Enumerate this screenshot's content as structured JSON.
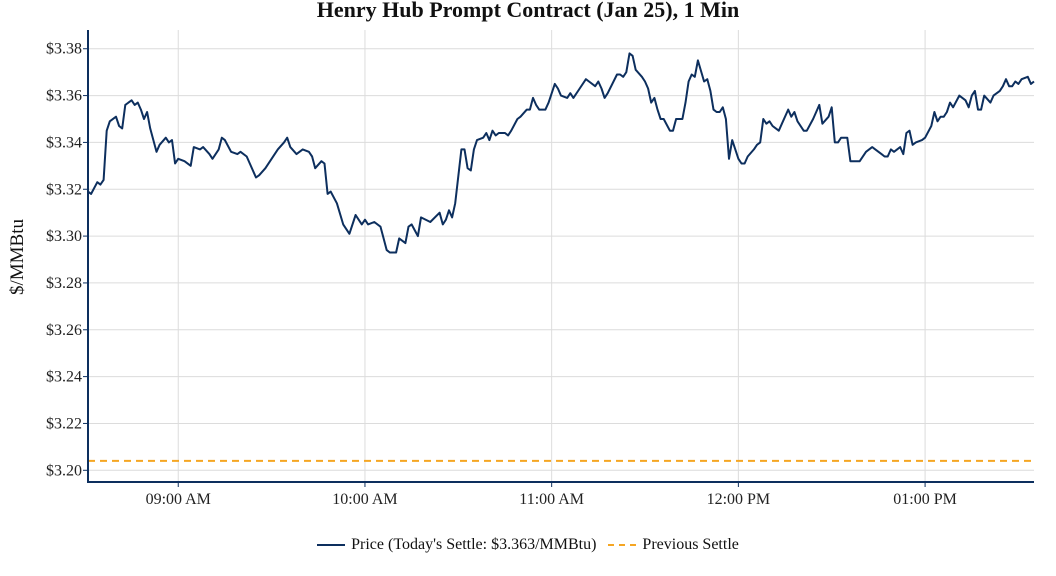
{
  "chart_data": {
    "type": "line",
    "title": "Henry Hub Prompt Contract (Jan 25), 1 Min",
    "xlabel": "",
    "ylabel": "$/MMBtu",
    "xlim": [
      "08:31",
      "13:35"
    ],
    "ylim": [
      3.195,
      3.388
    ],
    "grid": true,
    "legend_placement": "bottom-center",
    "x_ticks": [
      {
        "time": "09:00",
        "label": "09:00 AM"
      },
      {
        "time": "10:00",
        "label": "10:00 AM"
      },
      {
        "time": "11:00",
        "label": "11:00 AM"
      },
      {
        "time": "12:00",
        "label": "12:00 PM"
      },
      {
        "time": "13:00",
        "label": "01:00 PM"
      }
    ],
    "y_ticks": [
      {
        "value": 3.2,
        "label": "$3.20"
      },
      {
        "value": 3.22,
        "label": "$3.22"
      },
      {
        "value": 3.24,
        "label": "$3.24"
      },
      {
        "value": 3.26,
        "label": "$3.26"
      },
      {
        "value": 3.28,
        "label": "$3.28"
      },
      {
        "value": 3.3,
        "label": "$3.30"
      },
      {
        "value": 3.32,
        "label": "$3.32"
      },
      {
        "value": 3.34,
        "label": "$3.34"
      },
      {
        "value": 3.36,
        "label": "$3.36"
      },
      {
        "value": 3.38,
        "label": "$3.38"
      }
    ],
    "series": [
      {
        "name": "Price (Today's Settle: $3.363/MMBtu)",
        "color": "#0d2f5e",
        "style": "solid",
        "points": [
          [
            "08:31",
            3.319
          ],
          [
            "08:32",
            3.318
          ],
          [
            "08:34",
            3.323
          ],
          [
            "08:35",
            3.322
          ],
          [
            "08:36",
            3.324
          ],
          [
            "08:37",
            3.345
          ],
          [
            "08:38",
            3.349
          ],
          [
            "08:40",
            3.351
          ],
          [
            "08:41",
            3.347
          ],
          [
            "08:42",
            3.346
          ],
          [
            "08:43",
            3.356
          ],
          [
            "08:45",
            3.358
          ],
          [
            "08:46",
            3.356
          ],
          [
            "08:47",
            3.357
          ],
          [
            "08:48",
            3.354
          ],
          [
            "08:49",
            3.35
          ],
          [
            "08:50",
            3.353
          ],
          [
            "08:51",
            3.346
          ],
          [
            "08:53",
            3.336
          ],
          [
            "08:54",
            3.339
          ],
          [
            "08:56",
            3.342
          ],
          [
            "08:57",
            3.34
          ],
          [
            "08:58",
            3.341
          ],
          [
            "08:59",
            3.331
          ],
          [
            "09:00",
            3.333
          ],
          [
            "09:02",
            3.332
          ],
          [
            "09:04",
            3.33
          ],
          [
            "09:05",
            3.338
          ],
          [
            "09:07",
            3.337
          ],
          [
            "09:08",
            3.338
          ],
          [
            "09:10",
            3.335
          ],
          [
            "09:11",
            3.333
          ],
          [
            "09:13",
            3.337
          ],
          [
            "09:14",
            3.342
          ],
          [
            "09:15",
            3.341
          ],
          [
            "09:17",
            3.336
          ],
          [
            "09:19",
            3.335
          ],
          [
            "09:20",
            3.336
          ],
          [
            "09:22",
            3.334
          ],
          [
            "09:23",
            3.331
          ],
          [
            "09:25",
            3.325
          ],
          [
            "09:26",
            3.326
          ],
          [
            "09:28",
            3.329
          ],
          [
            "09:30",
            3.333
          ],
          [
            "09:32",
            3.337
          ],
          [
            "09:34",
            3.34
          ],
          [
            "09:35",
            3.342
          ],
          [
            "09:36",
            3.338
          ],
          [
            "09:38",
            3.335
          ],
          [
            "09:40",
            3.337
          ],
          [
            "09:42",
            3.336
          ],
          [
            "09:43",
            3.334
          ],
          [
            "09:44",
            3.329
          ],
          [
            "09:46",
            3.332
          ],
          [
            "09:47",
            3.331
          ],
          [
            "09:48",
            3.318
          ],
          [
            "09:49",
            3.319
          ],
          [
            "09:51",
            3.314
          ],
          [
            "09:53",
            3.305
          ],
          [
            "09:55",
            3.301
          ],
          [
            "09:57",
            3.309
          ],
          [
            "09:59",
            3.305
          ],
          [
            "10:00",
            3.307
          ],
          [
            "10:01",
            3.305
          ],
          [
            "10:03",
            3.306
          ],
          [
            "10:05",
            3.304
          ],
          [
            "10:06",
            3.299
          ],
          [
            "10:07",
            3.294
          ],
          [
            "10:08",
            3.293
          ],
          [
            "10:10",
            3.293
          ],
          [
            "10:11",
            3.299
          ],
          [
            "10:13",
            3.297
          ],
          [
            "10:14",
            3.304
          ],
          [
            "10:15",
            3.305
          ],
          [
            "10:17",
            3.3
          ],
          [
            "10:18",
            3.308
          ],
          [
            "10:21",
            3.306
          ],
          [
            "10:24",
            3.31
          ],
          [
            "10:25",
            3.305
          ],
          [
            "10:26",
            3.307
          ],
          [
            "10:27",
            3.311
          ],
          [
            "10:28",
            3.308
          ],
          [
            "10:29",
            3.314
          ],
          [
            "10:31",
            3.337
          ],
          [
            "10:32",
            3.337
          ],
          [
            "10:33",
            3.329
          ],
          [
            "10:34",
            3.328
          ],
          [
            "10:35",
            3.337
          ],
          [
            "10:36",
            3.341
          ],
          [
            "10:38",
            3.342
          ],
          [
            "10:39",
            3.344
          ],
          [
            "10:40",
            3.341
          ],
          [
            "10:41",
            3.345
          ],
          [
            "10:42",
            3.343
          ],
          [
            "10:43",
            3.344
          ],
          [
            "10:45",
            3.344
          ],
          [
            "10:46",
            3.343
          ],
          [
            "10:47",
            3.345
          ],
          [
            "10:49",
            3.35
          ],
          [
            "10:50",
            3.351
          ],
          [
            "10:52",
            3.354
          ],
          [
            "10:53",
            3.354
          ],
          [
            "10:54",
            3.359
          ],
          [
            "10:55",
            3.356
          ],
          [
            "10:56",
            3.354
          ],
          [
            "10:58",
            3.354
          ],
          [
            "10:59",
            3.357
          ],
          [
            "11:01",
            3.365
          ],
          [
            "11:02",
            3.363
          ],
          [
            "11:03",
            3.36
          ],
          [
            "11:05",
            3.359
          ],
          [
            "11:06",
            3.361
          ],
          [
            "11:07",
            3.359
          ],
          [
            "11:09",
            3.363
          ],
          [
            "11:11",
            3.367
          ],
          [
            "11:12",
            3.366
          ],
          [
            "11:14",
            3.364
          ],
          [
            "11:15",
            3.366
          ],
          [
            "11:16",
            3.363
          ],
          [
            "11:17",
            3.359
          ],
          [
            "11:18",
            3.361
          ],
          [
            "11:21",
            3.369
          ],
          [
            "11:22",
            3.369
          ],
          [
            "11:23",
            3.368
          ],
          [
            "11:24",
            3.37
          ],
          [
            "11:25",
            3.378
          ],
          [
            "11:26",
            3.377
          ],
          [
            "11:27",
            3.371
          ],
          [
            "11:29",
            3.368
          ],
          [
            "11:30",
            3.366
          ],
          [
            "11:31",
            3.363
          ],
          [
            "11:32",
            3.357
          ],
          [
            "11:33",
            3.359
          ],
          [
            "11:34",
            3.354
          ],
          [
            "11:35",
            3.35
          ],
          [
            "11:36",
            3.35
          ],
          [
            "11:38",
            3.345
          ],
          [
            "11:39",
            3.345
          ],
          [
            "11:40",
            3.35
          ],
          [
            "11:42",
            3.35
          ],
          [
            "11:43",
            3.357
          ],
          [
            "11:44",
            3.366
          ],
          [
            "11:45",
            3.369
          ],
          [
            "11:46",
            3.368
          ],
          [
            "11:47",
            3.375
          ],
          [
            "11:49",
            3.366
          ],
          [
            "11:50",
            3.367
          ],
          [
            "11:51",
            3.362
          ],
          [
            "11:52",
            3.354
          ],
          [
            "11:53",
            3.353
          ],
          [
            "11:54",
            3.353
          ],
          [
            "11:55",
            3.355
          ],
          [
            "11:56",
            3.35
          ],
          [
            "11:57",
            3.333
          ],
          [
            "11:58",
            3.341
          ],
          [
            "12:00",
            3.333
          ],
          [
            "12:01",
            3.331
          ],
          [
            "12:02",
            3.331
          ],
          [
            "12:03",
            3.334
          ],
          [
            "12:05",
            3.337
          ],
          [
            "12:06",
            3.339
          ],
          [
            "12:07",
            3.34
          ],
          [
            "12:08",
            3.35
          ],
          [
            "12:09",
            3.348
          ],
          [
            "12:10",
            3.349
          ],
          [
            "12:11",
            3.347
          ],
          [
            "12:13",
            3.345
          ],
          [
            "12:14",
            3.348
          ],
          [
            "12:16",
            3.354
          ],
          [
            "12:17",
            3.351
          ],
          [
            "12:18",
            3.353
          ],
          [
            "12:19",
            3.349
          ],
          [
            "12:21",
            3.345
          ],
          [
            "12:22",
            3.345
          ],
          [
            "12:24",
            3.35
          ],
          [
            "12:25",
            3.353
          ],
          [
            "12:26",
            3.356
          ],
          [
            "12:27",
            3.348
          ],
          [
            "12:29",
            3.351
          ],
          [
            "12:30",
            3.355
          ],
          [
            "12:31",
            3.34
          ],
          [
            "12:32",
            3.34
          ],
          [
            "12:33",
            3.342
          ],
          [
            "12:35",
            3.342
          ],
          [
            "12:36",
            3.332
          ],
          [
            "12:39",
            3.332
          ],
          [
            "12:41",
            3.336
          ],
          [
            "12:43",
            3.338
          ],
          [
            "12:44",
            3.337
          ],
          [
            "12:46",
            3.335
          ],
          [
            "12:47",
            3.334
          ],
          [
            "12:48",
            3.334
          ],
          [
            "12:49",
            3.337
          ],
          [
            "12:50",
            3.336
          ],
          [
            "12:51",
            3.337
          ],
          [
            "12:52",
            3.338
          ],
          [
            "12:53",
            3.335
          ],
          [
            "12:54",
            3.344
          ],
          [
            "12:55",
            3.345
          ],
          [
            "12:56",
            3.339
          ],
          [
            "12:57",
            3.34
          ],
          [
            "12:59",
            3.341
          ],
          [
            "13:00",
            3.342
          ],
          [
            "13:02",
            3.347
          ],
          [
            "13:03",
            3.353
          ],
          [
            "13:04",
            3.349
          ],
          [
            "13:05",
            3.351
          ],
          [
            "13:06",
            3.351
          ],
          [
            "13:07",
            3.353
          ],
          [
            "13:08",
            3.357
          ],
          [
            "13:09",
            3.355
          ],
          [
            "13:11",
            3.36
          ],
          [
            "13:13",
            3.358
          ],
          [
            "13:14",
            3.355
          ],
          [
            "13:15",
            3.36
          ],
          [
            "13:16",
            3.362
          ],
          [
            "13:17",
            3.354
          ],
          [
            "13:18",
            3.354
          ],
          [
            "13:19",
            3.36
          ],
          [
            "13:21",
            3.357
          ],
          [
            "13:22",
            3.36
          ],
          [
            "13:24",
            3.362
          ],
          [
            "13:25",
            3.364
          ],
          [
            "13:26",
            3.367
          ],
          [
            "13:27",
            3.364
          ],
          [
            "13:28",
            3.364
          ],
          [
            "13:29",
            3.366
          ],
          [
            "13:30",
            3.365
          ],
          [
            "13:31",
            3.367
          ],
          [
            "13:33",
            3.368
          ],
          [
            "13:34",
            3.365
          ],
          [
            "13:35",
            3.366
          ]
        ]
      },
      {
        "name": "Previous Settle",
        "color": "#f5a623",
        "style": "dashed",
        "value": 3.204
      }
    ]
  }
}
